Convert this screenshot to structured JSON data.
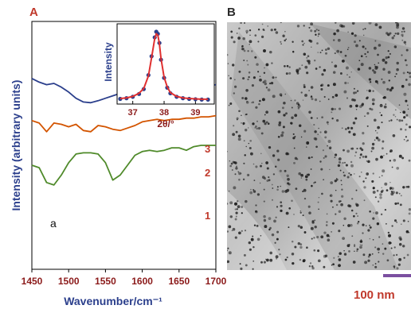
{
  "chart_data": [
    {
      "panel": "A",
      "type": "line",
      "xlabel": "Wavenumber/cm⁻¹",
      "ylabel": "Intensity (arbitrary units)",
      "xlim": [
        1450,
        1700
      ],
      "xticks": [
        "1450",
        "1500",
        "1550",
        "1600",
        "1650",
        "1700"
      ],
      "annotation": "a",
      "series": [
        {
          "name": "3",
          "color": "#2b3f8c",
          "x": [
            1450,
            1460,
            1470,
            1480,
            1490,
            1500,
            1510,
            1520,
            1530,
            1540,
            1550,
            1560,
            1570,
            1580,
            1590,
            1600,
            1610,
            1620,
            1630,
            1640,
            1650,
            1660,
            1670,
            1680,
            1690,
            1700
          ],
          "y": [
            0.77,
            0.755,
            0.745,
            0.75,
            0.735,
            0.715,
            0.69,
            0.675,
            0.672,
            0.68,
            0.69,
            0.7,
            0.71,
            0.735,
            0.76,
            0.775,
            0.77,
            0.755,
            0.745,
            0.735,
            0.725,
            0.72,
            0.725,
            0.73,
            0.74,
            0.745
          ]
        },
        {
          "name": "2",
          "color": "#d35400",
          "x": [
            1450,
            1460,
            1470,
            1480,
            1490,
            1500,
            1510,
            1520,
            1530,
            1540,
            1550,
            1560,
            1570,
            1580,
            1590,
            1600,
            1610,
            1620,
            1630,
            1640,
            1650,
            1660,
            1670,
            1680,
            1690,
            1700
          ],
          "y": [
            0.6,
            0.59,
            0.555,
            0.59,
            0.585,
            0.575,
            0.585,
            0.56,
            0.555,
            0.58,
            0.575,
            0.565,
            0.56,
            0.57,
            0.58,
            0.595,
            0.6,
            0.605,
            0.6,
            0.605,
            0.605,
            0.61,
            0.61,
            0.615,
            0.615,
            0.62
          ]
        },
        {
          "name": "1",
          "color": "#4f8a2a",
          "x": [
            1450,
            1460,
            1470,
            1480,
            1490,
            1500,
            1510,
            1520,
            1530,
            1540,
            1550,
            1560,
            1570,
            1580,
            1590,
            1600,
            1610,
            1620,
            1630,
            1640,
            1650,
            1660,
            1670,
            1680,
            1690,
            1700
          ],
          "y": [
            0.42,
            0.41,
            0.35,
            0.34,
            0.38,
            0.43,
            0.465,
            0.47,
            0.47,
            0.465,
            0.43,
            0.36,
            0.38,
            0.42,
            0.46,
            0.475,
            0.48,
            0.475,
            0.48,
            0.49,
            0.49,
            0.48,
            0.495,
            0.5,
            0.5,
            0.5
          ]
        }
      ]
    },
    {
      "panel": "A-inset",
      "type": "scatter",
      "xlabel": "2θ/°",
      "ylabel": "Intensity",
      "xlim": [
        36.5,
        39.6
      ],
      "xticks": [
        "37",
        "38",
        "39"
      ],
      "series": [
        {
          "name": "data",
          "color": "#2b3f8c",
          "x": [
            36.6,
            36.8,
            37.0,
            37.2,
            37.35,
            37.5,
            37.6,
            37.7,
            37.75,
            37.8,
            37.85,
            37.9,
            38.0,
            38.1,
            38.2,
            38.4,
            38.6,
            38.8,
            39.0,
            39.2,
            39.4
          ],
          "y": [
            0.04,
            0.05,
            0.07,
            0.11,
            0.18,
            0.38,
            0.65,
            0.92,
            1.0,
            0.97,
            0.84,
            0.6,
            0.34,
            0.2,
            0.12,
            0.07,
            0.05,
            0.04,
            0.035,
            0.03,
            0.03
          ]
        },
        {
          "name": "fit",
          "color": "#e03030",
          "type": "line",
          "x": [
            36.6,
            36.8,
            37.0,
            37.2,
            37.35,
            37.5,
            37.6,
            37.7,
            37.75,
            37.8,
            37.85,
            37.9,
            38.0,
            38.1,
            38.2,
            38.4,
            38.6,
            38.8,
            39.0,
            39.2,
            39.4
          ],
          "y": [
            0.045,
            0.055,
            0.075,
            0.12,
            0.19,
            0.37,
            0.63,
            0.9,
            0.97,
            0.95,
            0.83,
            0.62,
            0.35,
            0.21,
            0.13,
            0.075,
            0.055,
            0.045,
            0.04,
            0.035,
            0.035
          ]
        }
      ]
    }
  ],
  "panel_b": {
    "letter": "B",
    "scale_bar_label": "100 nm",
    "scale_bar_color": "#7b4fa0"
  },
  "colors": {
    "axis_title": "#2b3f8c",
    "tick_label": "#8b1a1a",
    "curve_label": "#c0392b",
    "panel_letter": "#c0392b"
  }
}
